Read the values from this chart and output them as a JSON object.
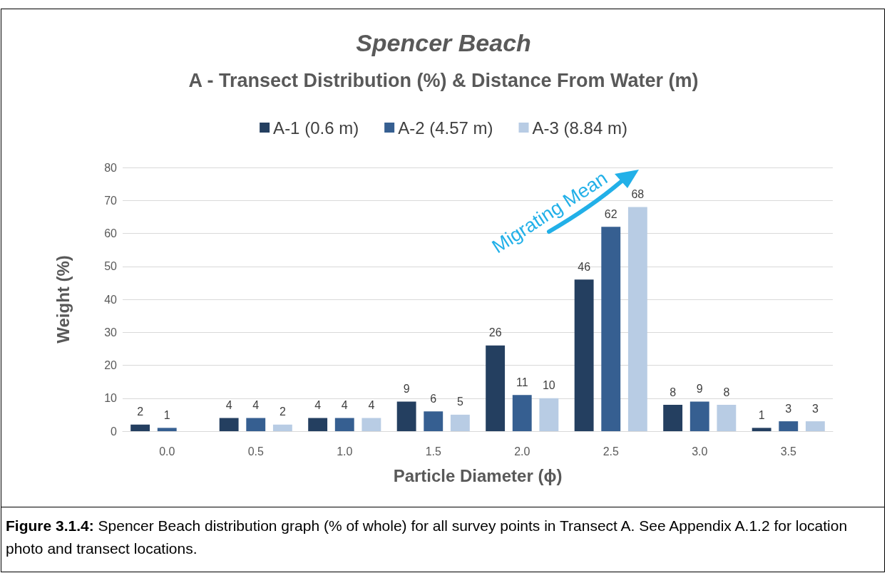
{
  "chart_data": {
    "type": "bar",
    "title": "Spencer Beach",
    "subtitle": "A - Transect Distribution (%) & Distance From Water (m)",
    "xlabel": "Particle Diameter (ϕ)",
    "ylabel": "Weight (%)",
    "categories": [
      "0.0",
      "0.5",
      "1.0",
      "1.5",
      "2.0",
      "2.5",
      "3.0",
      "3.5"
    ],
    "series": [
      {
        "name": "A-1 (0.6 m)",
        "color": "#243f60",
        "values": [
          2,
          4,
          4,
          9,
          26,
          46,
          8,
          1
        ]
      },
      {
        "name": "A-2 (4.57 m)",
        "color": "#365f91",
        "values": [
          1,
          4,
          4,
          6,
          11,
          62,
          9,
          3
        ]
      },
      {
        "name": "A-3 (8.84 m)",
        "color": "#b8cce4",
        "values": [
          null,
          2,
          4,
          5,
          10,
          68,
          8,
          3
        ]
      }
    ],
    "ylim": [
      0,
      80
    ],
    "yticks": [
      0,
      10,
      20,
      30,
      40,
      50,
      60,
      70,
      80
    ],
    "grid": "y",
    "legend": "top",
    "data_labels": true,
    "annotations": [
      "Migrating Mean",
      "Figure 3.1.4: Spencer Beach distribution graph (% of whole) for all survey points in Transect A. See Appendix A.1.2 for location photo and transect locations."
    ]
  }
}
